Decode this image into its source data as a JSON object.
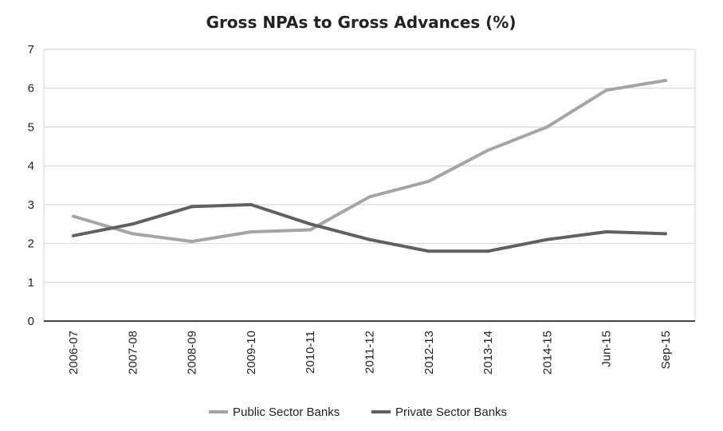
{
  "chart_data": {
    "type": "line",
    "title": "Gross NPAs to Gross Advances (%)",
    "xlabel": "",
    "ylabel": "",
    "categories": [
      "2006-07",
      "2007-08",
      "2008-09",
      "2009-10",
      "2010-11",
      "2011-12",
      "2012-13",
      "2013-14",
      "2014-15",
      "Jun-15",
      "Sep-15"
    ],
    "yticks": [
      "0",
      "1",
      "2",
      "3",
      "4",
      "5",
      "6",
      "7"
    ],
    "ylim": [
      0,
      7
    ],
    "grid": true,
    "legend_position": "bottom",
    "series": [
      {
        "name": "Public Sector Banks",
        "color": "#a5a5a5",
        "values": [
          2.7,
          2.25,
          2.05,
          2.3,
          2.35,
          3.2,
          3.6,
          4.4,
          5.0,
          5.95,
          6.2
        ]
      },
      {
        "name": "Private Sector Banks",
        "color": "#606060",
        "values": [
          2.2,
          2.5,
          2.95,
          3.0,
          2.5,
          2.1,
          1.8,
          1.8,
          2.1,
          2.3,
          2.25
        ]
      }
    ]
  }
}
